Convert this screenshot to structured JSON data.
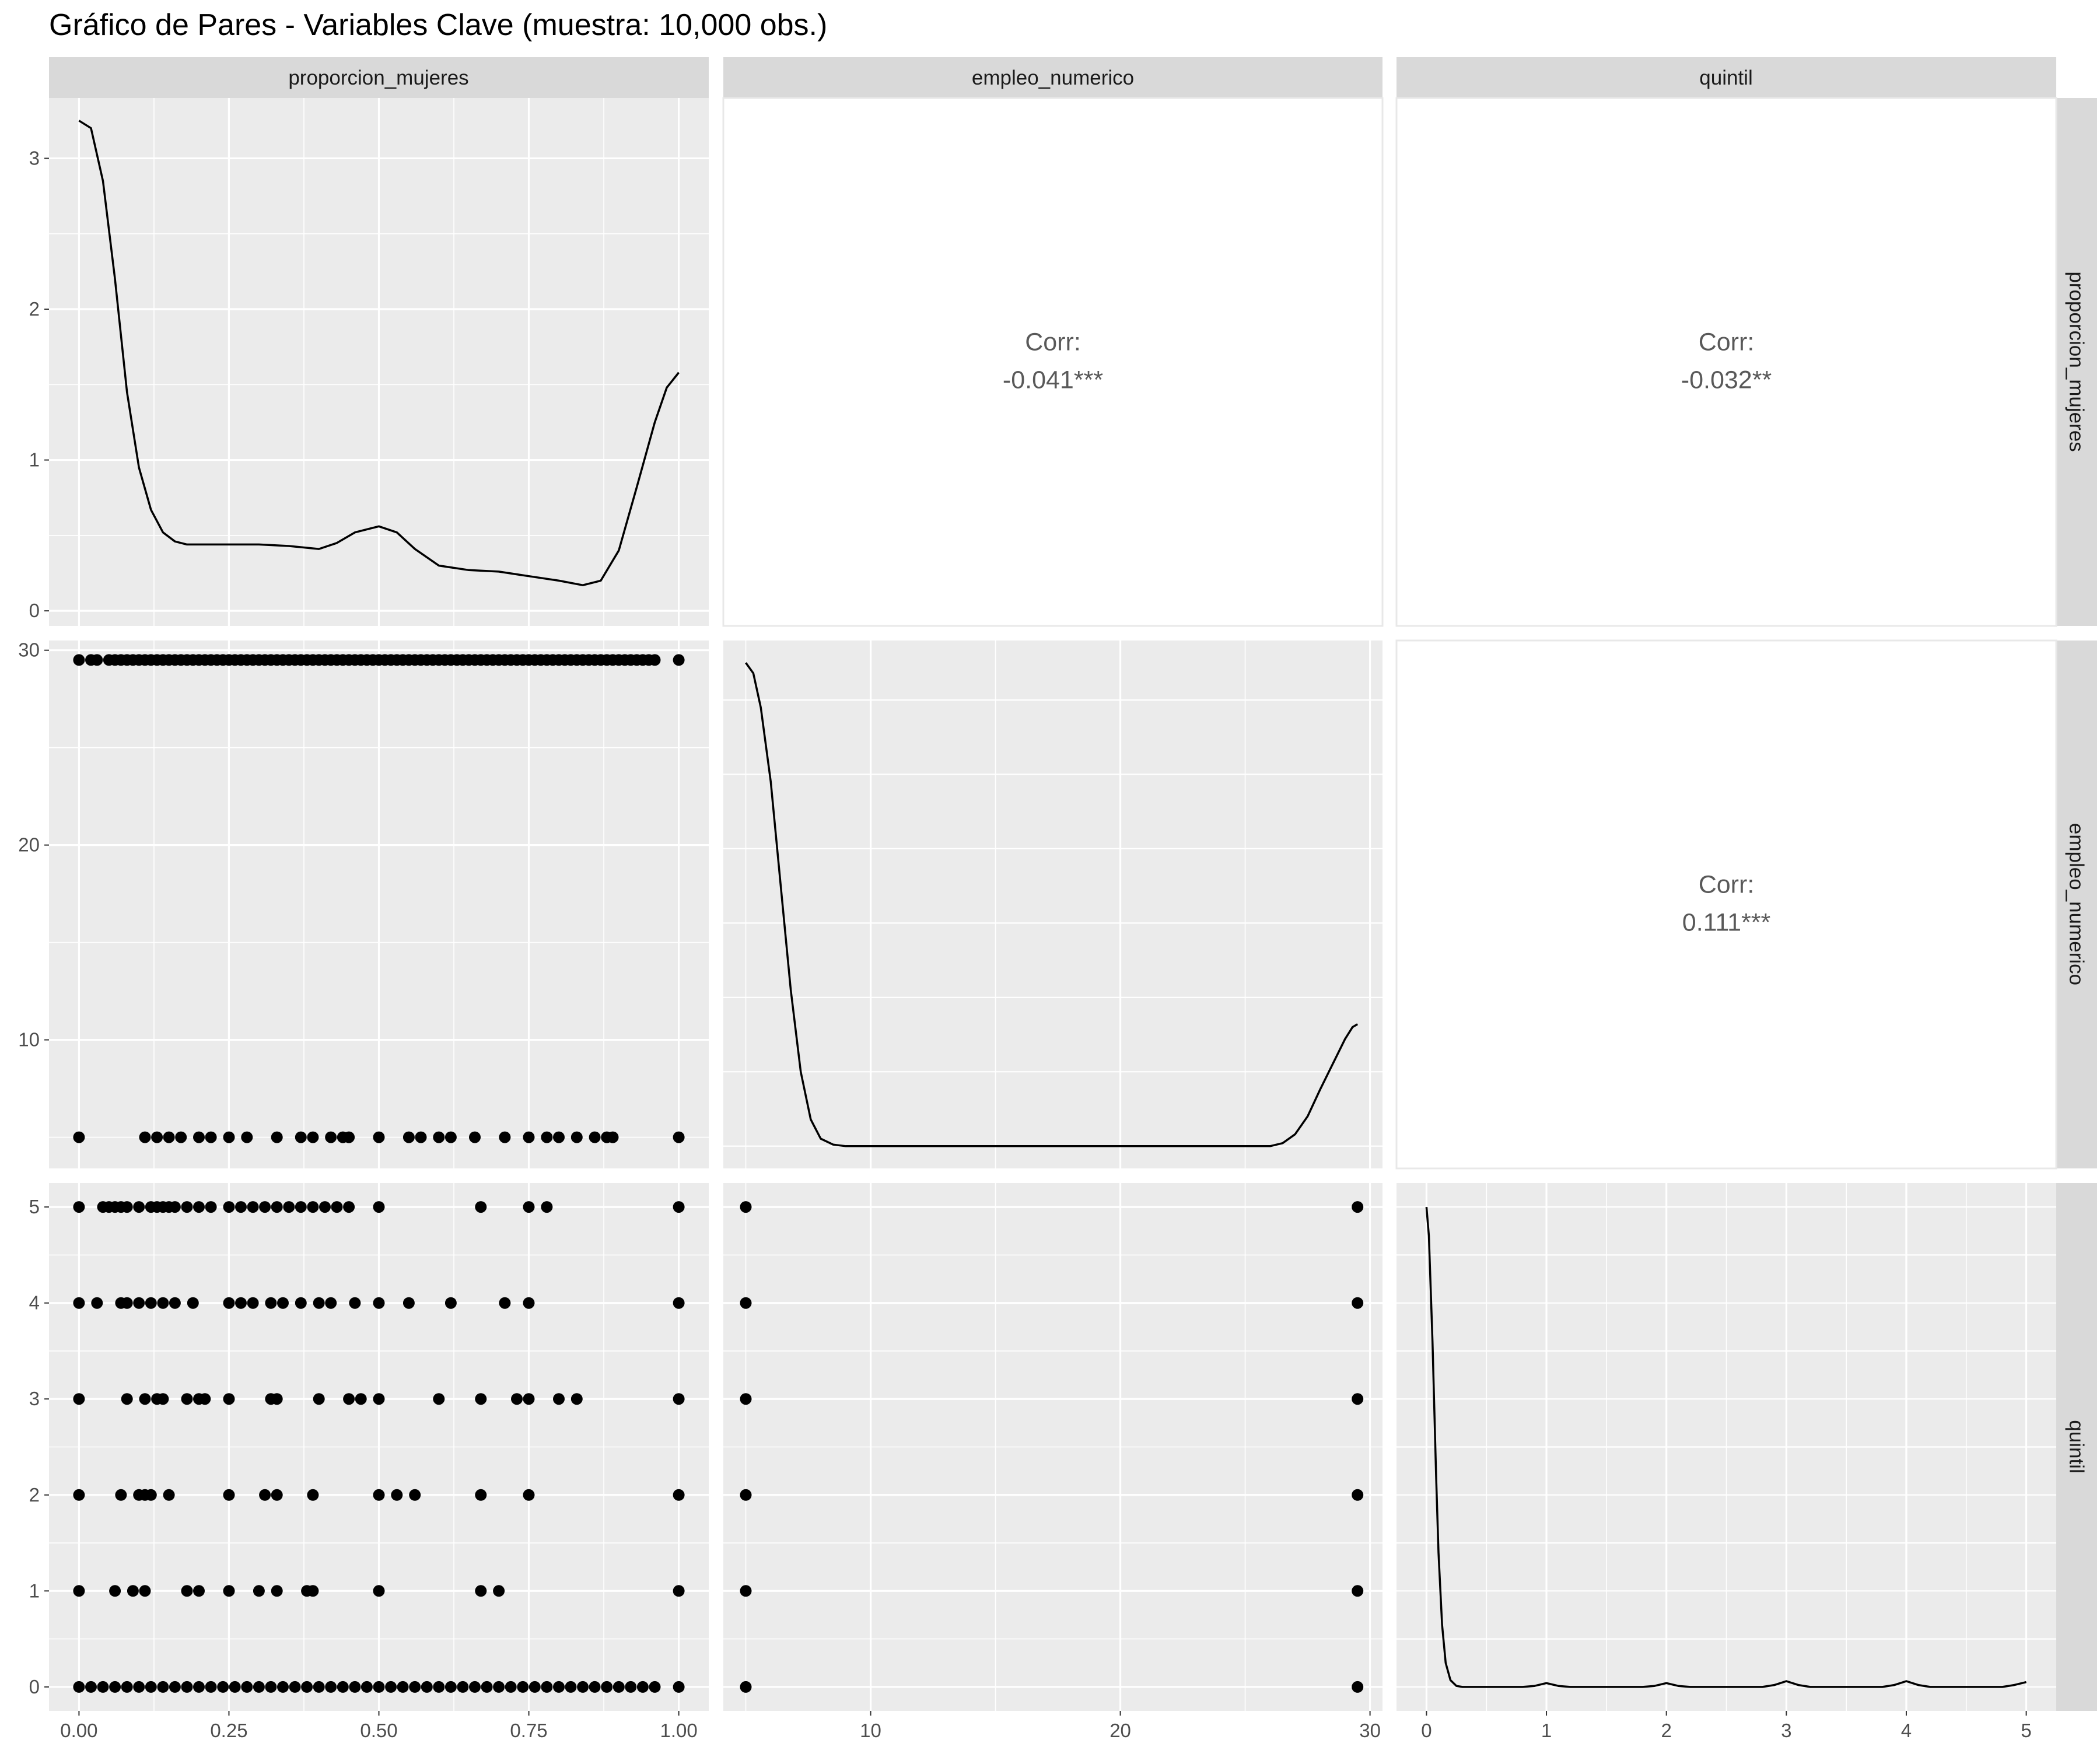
{
  "colors": {
    "panel_bg": "#ebebeb",
    "grid_major": "#ffffff",
    "strip_bg": "#d9d9d9",
    "point": "#000000",
    "line": "#000000",
    "corr_text": "#595959"
  },
  "chart_data": {
    "type": "scatter",
    "title": "Gráfico de Pares - Variables Clave (muestra: 10,000 obs.)",
    "variables": [
      "proporcion_mujeres",
      "empleo_numerico",
      "quintil"
    ],
    "column_strips": [
      "proporcion_mujeres",
      "empleo_numerico",
      "quintil"
    ],
    "row_strips": [
      "proporcion_mujeres",
      "empleo_numerico",
      "quintil"
    ],
    "x_ticks": [
      [
        0.0,
        0.25,
        0.5,
        0.75,
        1.0
      ],
      [
        10,
        20,
        30
      ],
      [
        0,
        1,
        2,
        3,
        4,
        5
      ]
    ],
    "x_tick_labels": [
      [
        "0.00",
        "0.25",
        "0.50",
        "0.75",
        "1.00"
      ],
      [
        "10",
        "20",
        "30"
      ],
      [
        "0",
        "1",
        "2",
        "3",
        "4",
        "5"
      ]
    ],
    "y_ticks": [
      [
        0,
        1,
        2,
        3
      ],
      [
        10,
        20,
        30
      ],
      [
        0,
        1,
        2,
        3,
        4,
        5
      ]
    ],
    "y_tick_labels": [
      [
        "0",
        "1",
        "2",
        "3"
      ],
      [
        "10",
        "20",
        "30"
      ],
      [
        "0",
        "1",
        "2",
        "3",
        "4",
        "5"
      ]
    ],
    "x_ranges": [
      [
        -0.05,
        1.05
      ],
      [
        4.1,
        30.5
      ],
      [
        -0.25,
        5.25
      ]
    ],
    "y_ranges": [
      [
        -0.1,
        3.4
      ],
      [
        3.4,
        30.5
      ],
      [
        -0.25,
        5.25
      ]
    ],
    "diag_y_ranges": [
      [
        -0.1,
        3.4
      ],
      [
        -0.15,
        3.4
      ],
      [
        -0.25,
        5.25
      ]
    ],
    "density": [
      {
        "x": [
          0.0,
          0.02,
          0.04,
          0.06,
          0.08,
          0.1,
          0.12,
          0.14,
          0.16,
          0.18,
          0.2,
          0.25,
          0.3,
          0.35,
          0.4,
          0.43,
          0.46,
          0.5,
          0.53,
          0.56,
          0.6,
          0.65,
          0.7,
          0.75,
          0.8,
          0.84,
          0.87,
          0.9,
          0.93,
          0.96,
          0.98,
          1.0
        ],
        "y": [
          3.25,
          3.2,
          2.85,
          2.2,
          1.45,
          0.95,
          0.67,
          0.52,
          0.46,
          0.44,
          0.44,
          0.44,
          0.44,
          0.43,
          0.41,
          0.45,
          0.52,
          0.56,
          0.52,
          0.41,
          0.3,
          0.27,
          0.26,
          0.23,
          0.2,
          0.17,
          0.2,
          0.4,
          0.82,
          1.25,
          1.48,
          1.58
        ]
      },
      {
        "x": [
          5,
          5.3,
          5.6,
          6.0,
          6.4,
          6.8,
          7.2,
          7.6,
          8.0,
          8.5,
          9.0,
          10,
          15,
          20,
          25,
          26,
          26.5,
          27,
          27.5,
          28,
          28.5,
          29,
          29.3,
          29.5
        ],
        "y": [
          3.25,
          3.18,
          2.95,
          2.45,
          1.75,
          1.05,
          0.5,
          0.18,
          0.05,
          0.01,
          0.0,
          0.0,
          0.0,
          0.0,
          0.0,
          0.0,
          0.02,
          0.08,
          0.2,
          0.38,
          0.55,
          0.72,
          0.8,
          0.82
        ]
      },
      {
        "x": [
          0.0,
          0.02,
          0.05,
          0.08,
          0.1,
          0.13,
          0.16,
          0.2,
          0.25,
          0.3,
          0.35,
          0.5,
          0.8,
          0.9,
          1.0,
          1.1,
          1.2,
          1.5,
          1.8,
          1.9,
          2.0,
          2.1,
          2.2,
          2.5,
          2.8,
          2.9,
          3.0,
          3.1,
          3.2,
          3.5,
          3.8,
          3.9,
          4.0,
          4.1,
          4.2,
          4.5,
          4.8,
          4.9,
          5.0
        ],
        "y": [
          5.0,
          4.7,
          3.6,
          2.2,
          1.4,
          0.65,
          0.25,
          0.07,
          0.01,
          0.0,
          0.0,
          0.0,
          0.0,
          0.01,
          0.04,
          0.01,
          0.0,
          0.0,
          0.0,
          0.01,
          0.04,
          0.01,
          0.0,
          0.0,
          0.0,
          0.02,
          0.06,
          0.02,
          0.0,
          0.0,
          0.0,
          0.02,
          0.06,
          0.02,
          0.0,
          0.0,
          0.0,
          0.02,
          0.05
        ]
      }
    ],
    "correlations": [
      {
        "row": 0,
        "col": 1,
        "label": "Corr:",
        "value": "-0.041***"
      },
      {
        "row": 0,
        "col": 2,
        "label": "Corr:",
        "value": "-0.032**"
      },
      {
        "row": 1,
        "col": 2,
        "label": "Corr:",
        "value": "0.111***"
      }
    ],
    "scatter": [
      {
        "row": 1,
        "col": 0,
        "x": [
          0.0,
          0.02,
          0.03,
          0.05,
          0.06,
          0.07,
          0.08,
          0.09,
          0.1,
          0.11,
          0.12,
          0.13,
          0.14,
          0.15,
          0.16,
          0.17,
          0.18,
          0.19,
          0.2,
          0.21,
          0.22,
          0.23,
          0.24,
          0.25,
          0.26,
          0.27,
          0.28,
          0.29,
          0.3,
          0.31,
          0.32,
          0.33,
          0.34,
          0.35,
          0.36,
          0.37,
          0.38,
          0.39,
          0.4,
          0.41,
          0.42,
          0.43,
          0.44,
          0.45,
          0.46,
          0.47,
          0.48,
          0.49,
          0.5,
          0.51,
          0.52,
          0.53,
          0.54,
          0.55,
          0.56,
          0.57,
          0.58,
          0.59,
          0.6,
          0.61,
          0.62,
          0.63,
          0.64,
          0.65,
          0.66,
          0.67,
          0.68,
          0.69,
          0.7,
          0.71,
          0.72,
          0.73,
          0.74,
          0.75,
          0.76,
          0.77,
          0.78,
          0.79,
          0.8,
          0.81,
          0.82,
          0.83,
          0.84,
          0.85,
          0.86,
          0.87,
          0.88,
          0.89,
          0.9,
          0.91,
          0.92,
          0.93,
          0.94,
          0.95,
          0.96,
          1.0,
          0.0,
          0.11,
          0.13,
          0.15,
          0.17,
          0.2,
          0.22,
          0.25,
          0.28,
          0.33,
          0.37,
          0.39,
          0.42,
          0.44,
          0.45,
          0.5,
          0.55,
          0.57,
          0.6,
          0.62,
          0.66,
          0.71,
          0.75,
          0.78,
          0.8,
          0.83,
          0.86,
          0.88,
          0.89,
          1.0
        ],
        "y": [
          29.5,
          29.5,
          29.5,
          29.5,
          29.5,
          29.5,
          29.5,
          29.5,
          29.5,
          29.5,
          29.5,
          29.5,
          29.5,
          29.5,
          29.5,
          29.5,
          29.5,
          29.5,
          29.5,
          29.5,
          29.5,
          29.5,
          29.5,
          29.5,
          29.5,
          29.5,
          29.5,
          29.5,
          29.5,
          29.5,
          29.5,
          29.5,
          29.5,
          29.5,
          29.5,
          29.5,
          29.5,
          29.5,
          29.5,
          29.5,
          29.5,
          29.5,
          29.5,
          29.5,
          29.5,
          29.5,
          29.5,
          29.5,
          29.5,
          29.5,
          29.5,
          29.5,
          29.5,
          29.5,
          29.5,
          29.5,
          29.5,
          29.5,
          29.5,
          29.5,
          29.5,
          29.5,
          29.5,
          29.5,
          29.5,
          29.5,
          29.5,
          29.5,
          29.5,
          29.5,
          29.5,
          29.5,
          29.5,
          29.5,
          29.5,
          29.5,
          29.5,
          29.5,
          29.5,
          29.5,
          29.5,
          29.5,
          29.5,
          29.5,
          29.5,
          29.5,
          29.5,
          29.5,
          29.5,
          29.5,
          29.5,
          29.5,
          29.5,
          29.5,
          29.5,
          29.5,
          5.0,
          5.0,
          5.0,
          5.0,
          5.0,
          5.0,
          5.0,
          5.0,
          5.0,
          5.0,
          5.0,
          5.0,
          5.0,
          5.0,
          5.0,
          5.0,
          5.0,
          5.0,
          5.0,
          5.0,
          5.0,
          5.0,
          5.0,
          5.0,
          5.0,
          5.0,
          5.0,
          5.0,
          5.0,
          5.0
        ]
      },
      {
        "row": 2,
        "col": 0,
        "x": [
          0.0,
          0.04,
          0.05,
          0.06,
          0.07,
          0.08,
          0.1,
          0.12,
          0.13,
          0.14,
          0.15,
          0.16,
          0.18,
          0.2,
          0.22,
          0.25,
          0.27,
          0.29,
          0.31,
          0.33,
          0.35,
          0.37,
          0.39,
          0.41,
          0.43,
          0.45,
          0.5,
          0.67,
          0.75,
          0.78,
          1.0,
          0.0,
          0.03,
          0.07,
          0.08,
          0.1,
          0.12,
          0.14,
          0.16,
          0.19,
          0.25,
          0.27,
          0.29,
          0.32,
          0.34,
          0.37,
          0.4,
          0.42,
          0.46,
          0.5,
          0.55,
          0.62,
          0.71,
          0.75,
          1.0,
          0.0,
          0.08,
          0.11,
          0.13,
          0.14,
          0.18,
          0.2,
          0.21,
          0.25,
          0.32,
          0.33,
          0.4,
          0.45,
          0.47,
          0.5,
          0.6,
          0.67,
          0.73,
          0.75,
          0.8,
          0.83,
          1.0,
          0.0,
          0.07,
          0.1,
          0.11,
          0.12,
          0.15,
          0.25,
          0.31,
          0.33,
          0.39,
          0.5,
          0.53,
          0.56,
          0.67,
          0.75,
          1.0,
          0.0,
          0.06,
          0.09,
          0.11,
          0.18,
          0.2,
          0.25,
          0.3,
          0.33,
          0.38,
          0.39,
          0.5,
          0.67,
          0.7,
          1.0,
          0.0,
          0.02,
          0.04,
          0.06,
          0.08,
          0.1,
          0.12,
          0.14,
          0.16,
          0.18,
          0.2,
          0.22,
          0.24,
          0.26,
          0.28,
          0.3,
          0.32,
          0.34,
          0.36,
          0.38,
          0.4,
          0.42,
          0.44,
          0.46,
          0.48,
          0.5,
          0.52,
          0.54,
          0.56,
          0.58,
          0.6,
          0.62,
          0.64,
          0.66,
          0.68,
          0.7,
          0.72,
          0.74,
          0.76,
          0.78,
          0.8,
          0.82,
          0.84,
          0.86,
          0.88,
          0.9,
          0.92,
          0.94,
          0.96,
          1.0
        ],
        "y": [
          5,
          5,
          5,
          5,
          5,
          5,
          5,
          5,
          5,
          5,
          5,
          5,
          5,
          5,
          5,
          5,
          5,
          5,
          5,
          5,
          5,
          5,
          5,
          5,
          5,
          5,
          5,
          5,
          5,
          5,
          5,
          4,
          4,
          4,
          4,
          4,
          4,
          4,
          4,
          4,
          4,
          4,
          4,
          4,
          4,
          4,
          4,
          4,
          4,
          4,
          4,
          4,
          4,
          4,
          4,
          3,
          3,
          3,
          3,
          3,
          3,
          3,
          3,
          3,
          3,
          3,
          3,
          3,
          3,
          3,
          3,
          3,
          3,
          3,
          3,
          3,
          3,
          2,
          2,
          2,
          2,
          2,
          2,
          2,
          2,
          2,
          2,
          2,
          2,
          2,
          2,
          2,
          2,
          1,
          1,
          1,
          1,
          1,
          1,
          1,
          1,
          1,
          1,
          1,
          1,
          1,
          1,
          1,
          0,
          0,
          0,
          0,
          0,
          0,
          0,
          0,
          0,
          0,
          0,
          0,
          0,
          0,
          0,
          0,
          0,
          0,
          0,
          0,
          0,
          0,
          0,
          0,
          0,
          0,
          0,
          0,
          0,
          0,
          0,
          0,
          0,
          0,
          0,
          0,
          0,
          0,
          0,
          0,
          0,
          0,
          0,
          0,
          0,
          0,
          0,
          0,
          0,
          0
        ]
      },
      {
        "row": 2,
        "col": 1,
        "x": [
          5,
          5,
          5,
          5,
          5,
          5,
          29.5,
          29.5,
          29.5,
          29.5,
          29.5,
          29.5
        ],
        "y": [
          0,
          1,
          2,
          3,
          4,
          5,
          0,
          1,
          2,
          3,
          4,
          5
        ]
      }
    ]
  }
}
